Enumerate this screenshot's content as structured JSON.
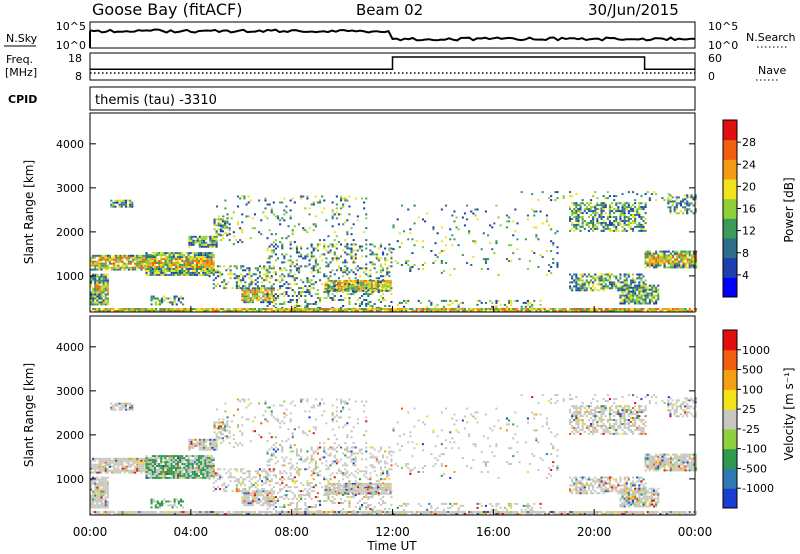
{
  "header": {
    "station": "Goose Bay (fitACF)",
    "beam": "Beam 02",
    "date": "30/Jun/2015"
  },
  "status_panels": {
    "nsky_label": "N.Sky",
    "nsky_ticks": [
      "10^5",
      "10^0"
    ],
    "nsearch_label": "N.Search",
    "nsearch_ticks": [
      "10^5",
      "10^0"
    ],
    "freq_label_1": "Freq.",
    "freq_label_2": "[MHz]",
    "freq_ticks": [
      "18",
      "8"
    ],
    "nave_label": "Nave",
    "nave_ticks": [
      "60",
      "0"
    ],
    "cpid_label": "CPID",
    "cpid_text": "themis (tau) -3310"
  },
  "chart_data": [
    {
      "type": "heatmap",
      "name": "power",
      "ylabel": "Slant Range [km]",
      "yticks": [
        "4000",
        "3000",
        "2000",
        "1000"
      ],
      "ylim": [
        180,
        4700
      ],
      "xlim": [
        0,
        24
      ],
      "colorbar_label": "Power [dB]",
      "colorbar_ticks": [
        "28",
        "24",
        "20",
        "16",
        "12",
        "8",
        "4"
      ],
      "colorbar_colors": [
        "#0000ff",
        "#1f3fb0",
        "#2e6e8c",
        "#3c9a5a",
        "#8fcf3a",
        "#f2e21a",
        "#f49b16",
        "#f06010",
        "#e01010"
      ]
    },
    {
      "type": "heatmap",
      "name": "velocity",
      "ylabel": "Slant Range [km]",
      "yticks": [
        "4000",
        "3000",
        "2000",
        "1000"
      ],
      "ylim": [
        180,
        4700
      ],
      "xlim": [
        0,
        24
      ],
      "xticks": [
        "00:00",
        "04:00",
        "08:00",
        "12:00",
        "16:00",
        "20:00",
        "00:00"
      ],
      "xlabel": "Time UT",
      "colorbar_label": "Velocity [m s⁻¹]",
      "colorbar_ticks": [
        "1000",
        "500",
        "100",
        "25",
        "-25",
        "-100",
        "-500",
        "-1000"
      ],
      "colorbar_colors": [
        "#1a3fd0",
        "#2e7ab0",
        "#2e9a50",
        "#8fd040",
        "#c8c8c0",
        "#f2e21a",
        "#f4a010",
        "#f06010",
        "#e01010"
      ]
    }
  ],
  "freq_series": {
    "x": [
      0,
      12,
      12,
      22,
      22,
      24
    ],
    "y": [
      12,
      12,
      16.5,
      16.5,
      12,
      12
    ]
  }
}
